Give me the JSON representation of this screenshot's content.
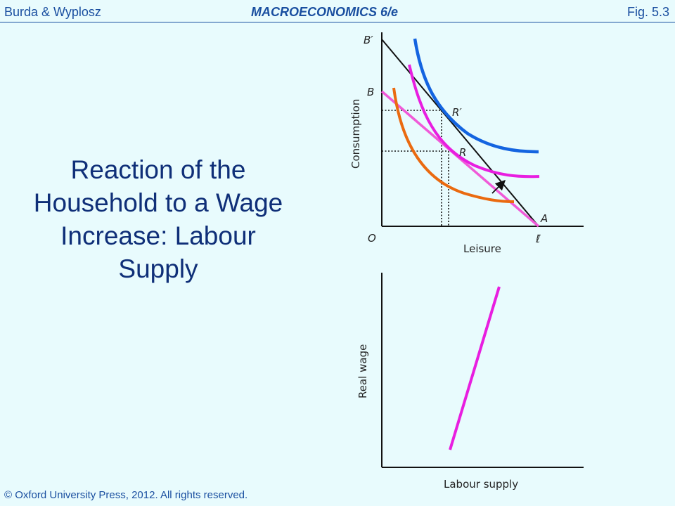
{
  "header": {
    "authors": "Burda & Wyplosz",
    "book": "MACROECONOMICS   6/e",
    "figure": "Fig. 5.3"
  },
  "slide_title": "Reaction of the Household to a Wage Increase: Labour Supply",
  "footer": {
    "copyright": "© Oxford University Press, 2012. All rights reserved."
  },
  "top_diagram": {
    "y_axis_label": "Consumption",
    "x_axis_label": "Leisure",
    "point_labels": {
      "b_prime": "B′",
      "b": "B",
      "r_prime": "R′",
      "r": "R",
      "a": "A",
      "origin": "O",
      "l_bar": "ℓ̄"
    },
    "colors": {
      "high_indifference_curve": "#1464e0",
      "middle_indifference_curve": "#e81ee0",
      "low_indifference_curve": "#ea6a10",
      "initial_budget_line": "#f05ad8",
      "new_budget_line": "#111111"
    }
  },
  "bottom_diagram": {
    "y_axis_label": "Real wage",
    "x_axis_label": "Labour supply",
    "colors": {
      "labour_supply_curve": "#e81ee0"
    }
  }
}
